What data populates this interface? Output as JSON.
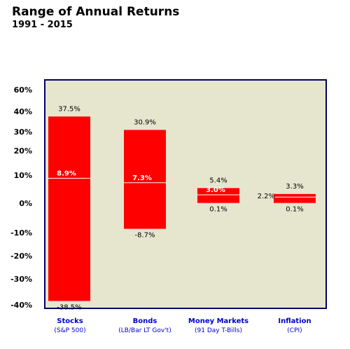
{
  "chart_data": {
    "type": "bar",
    "title": "Range of Annual Returns",
    "subtitle": "1991 - 2015",
    "categories": [
      "Stocks",
      "Bonds",
      "Money Markets",
      "Inflation"
    ],
    "category_sublabels": [
      "(S&P 500)",
      "(LB/Bar LT Gov't)",
      "(91 Day T-Bills)",
      "(CPI)"
    ],
    "series": [
      {
        "high": [
          37.5,
          30.9,
          5.4,
          3.3
        ],
        "low": [
          -38.5,
          -8.7,
          0.1,
          0.1
        ],
        "mid": [
          8.9,
          7.3,
          3.0,
          2.2
        ]
      }
    ],
    "high_labels": [
      "37.5%",
      "30.9%",
      "5.4%",
      "3.3%"
    ],
    "low_labels": [
      "-38.5%",
      "-8.7%",
      "0.1%",
      "0.1%"
    ],
    "mid_labels": [
      "8.9%",
      "7.3%",
      "3.0%",
      "2.2%"
    ],
    "yticks": [
      60,
      40,
      30,
      20,
      10,
      0,
      -10,
      -20,
      -30,
      -40
    ],
    "ytick_labels": [
      "60%",
      "40%",
      "30%",
      "20%",
      "10%",
      "0%",
      "-10%",
      "-20%",
      "-30%",
      "-40%"
    ],
    "xlabel": "",
    "ylabel": "",
    "ylim": [
      -42,
      60
    ],
    "grid": false,
    "legend": "none",
    "colors": {
      "bar": "#ff0000",
      "plot_bg": "#e6e6cf",
      "frame": "#000066",
      "category_text": "#0000cc"
    }
  }
}
